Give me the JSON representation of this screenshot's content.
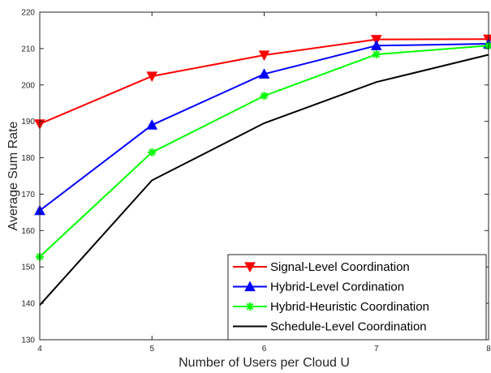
{
  "chart_data": {
    "type": "line",
    "title": "",
    "xlabel": "Number of Users per Cloud U",
    "ylabel": "Average Sum Rate",
    "x": [
      4,
      5,
      6,
      7,
      8
    ],
    "xlim": [
      4,
      8
    ],
    "ylim": [
      130,
      220
    ],
    "xticks": [
      "4",
      "5",
      "6",
      "7",
      "8"
    ],
    "yticks": [
      "130",
      "140",
      "150",
      "160",
      "170",
      "180",
      "190",
      "200",
      "210",
      "220"
    ],
    "grid": true,
    "legend_position": "bottom-right",
    "series": [
      {
        "name": "Signal-Level Coordination",
        "color": "#ff0000",
        "marker": "triangle-down",
        "values": [
          189.3,
          202.4,
          208.2,
          212.5,
          212.6
        ]
      },
      {
        "name": "Hybrid-Level Cordination",
        "color": "#0000ff",
        "marker": "triangle-up",
        "values": [
          165.5,
          189.0,
          203.0,
          210.8,
          211.3
        ]
      },
      {
        "name": "Hybrid-Heuristic Coordination",
        "color": "#00ff00",
        "marker": "asterisk",
        "values": [
          152.8,
          181.5,
          197.0,
          208.4,
          210.8
        ]
      },
      {
        "name": "Schedule-Level Coordination",
        "color": "#000000",
        "marker": "none",
        "values": [
          139.5,
          173.8,
          189.5,
          200.8,
          208.3
        ]
      }
    ]
  }
}
